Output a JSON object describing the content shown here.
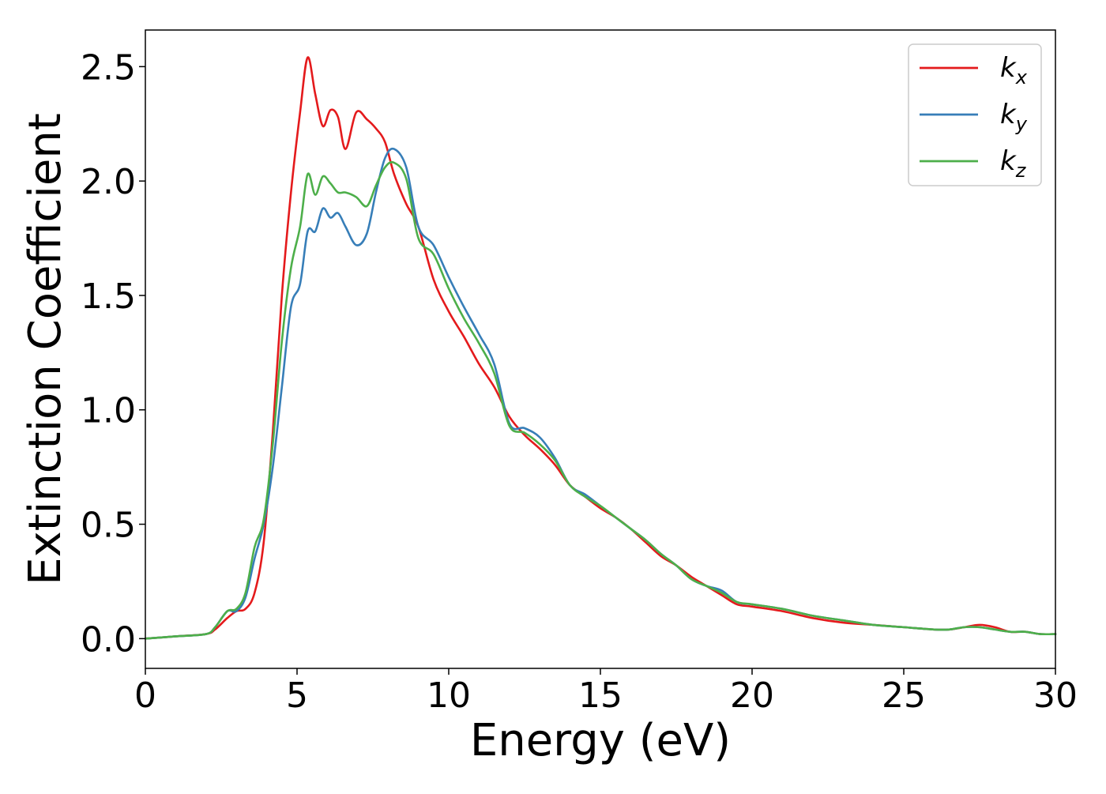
{
  "chart_data": {
    "type": "line",
    "xlabel": "Energy (eV)",
    "ylabel": "Extinction Coefficient",
    "xlim": [
      0,
      30
    ],
    "ylim": [
      -0.13,
      2.66
    ],
    "xticks": [
      0,
      5,
      10,
      15,
      20,
      25,
      30
    ],
    "xtick_labels": [
      "0",
      "5",
      "10",
      "15",
      "20",
      "25",
      "30"
    ],
    "yticks": [
      0.0,
      0.5,
      1.0,
      1.5,
      2.0,
      2.5
    ],
    "ytick_labels": [
      "0.0",
      "0.5",
      "1.0",
      "1.5",
      "2.0",
      "2.5"
    ],
    "grid": false,
    "legend_position": "top-right",
    "series": [
      {
        "name": "k",
        "subscript": "x",
        "color": "#e41a1c",
        "x": [
          0,
          1,
          2,
          2.3,
          2.7,
          3.0,
          3.3,
          3.6,
          3.9,
          4.2,
          4.5,
          4.8,
          5.1,
          5.35,
          5.6,
          5.85,
          6.1,
          6.35,
          6.6,
          6.95,
          7.3,
          7.6,
          7.9,
          8.2,
          8.6,
          9.0,
          9.5,
          10.0,
          10.5,
          11.0,
          11.5,
          12.0,
          12.5,
          13.0,
          13.5,
          14.0,
          14.5,
          15.0,
          15.5,
          16.0,
          16.5,
          17.0,
          17.5,
          18.0,
          18.5,
          19.0,
          19.5,
          20.0,
          21.0,
          22.0,
          23.0,
          24.0,
          25.0,
          26.0,
          26.5,
          27.0,
          27.5,
          28.0,
          28.5,
          29.0,
          29.5,
          30.0
        ],
        "y": [
          0.0,
          0.01,
          0.02,
          0.04,
          0.09,
          0.12,
          0.13,
          0.2,
          0.42,
          0.9,
          1.5,
          1.95,
          2.3,
          2.54,
          2.38,
          2.24,
          2.31,
          2.28,
          2.14,
          2.3,
          2.27,
          2.23,
          2.17,
          2.03,
          1.9,
          1.8,
          1.57,
          1.43,
          1.32,
          1.2,
          1.1,
          0.97,
          0.89,
          0.83,
          0.76,
          0.67,
          0.62,
          0.57,
          0.53,
          0.48,
          0.42,
          0.36,
          0.32,
          0.27,
          0.23,
          0.19,
          0.15,
          0.14,
          0.12,
          0.09,
          0.07,
          0.06,
          0.05,
          0.04,
          0.04,
          0.05,
          0.06,
          0.05,
          0.03,
          0.03,
          0.02,
          0.02
        ]
      },
      {
        "name": "k",
        "subscript": "y",
        "color": "#377eb8",
        "x": [
          0,
          1,
          2,
          2.3,
          2.7,
          3.0,
          3.3,
          3.6,
          3.9,
          4.2,
          4.5,
          4.8,
          5.1,
          5.35,
          5.6,
          5.85,
          6.1,
          6.35,
          6.6,
          6.95,
          7.3,
          7.6,
          7.9,
          8.2,
          8.6,
          9.0,
          9.5,
          10.0,
          10.5,
          11.0,
          11.5,
          12.0,
          12.5,
          13.0,
          13.5,
          14.0,
          14.5,
          15.0,
          15.5,
          16.0,
          16.5,
          17.0,
          17.5,
          18.0,
          18.5,
          19.0,
          19.5,
          20.0,
          21.0,
          22.0,
          23.0,
          24.0,
          25.0,
          26.0,
          26.5,
          27.0,
          27.5,
          28.0,
          28.5,
          29.0,
          29.5,
          30.0
        ],
        "y": [
          0.0,
          0.01,
          0.02,
          0.05,
          0.12,
          0.12,
          0.18,
          0.35,
          0.5,
          0.75,
          1.1,
          1.45,
          1.55,
          1.78,
          1.78,
          1.88,
          1.84,
          1.86,
          1.8,
          1.72,
          1.77,
          1.95,
          2.1,
          2.14,
          2.06,
          1.8,
          1.72,
          1.58,
          1.45,
          1.33,
          1.2,
          0.94,
          0.92,
          0.88,
          0.79,
          0.67,
          0.63,
          0.58,
          0.53,
          0.48,
          0.43,
          0.37,
          0.32,
          0.26,
          0.23,
          0.21,
          0.16,
          0.15,
          0.13,
          0.1,
          0.08,
          0.06,
          0.05,
          0.04,
          0.04,
          0.05,
          0.05,
          0.04,
          0.03,
          0.03,
          0.02,
          0.02
        ]
      },
      {
        "name": "k",
        "subscript": "z",
        "color": "#4daf4a",
        "x": [
          0,
          1,
          2,
          2.3,
          2.7,
          3.0,
          3.3,
          3.6,
          3.9,
          4.2,
          4.5,
          4.8,
          5.1,
          5.35,
          5.6,
          5.85,
          6.1,
          6.35,
          6.6,
          6.95,
          7.3,
          7.6,
          7.9,
          8.2,
          8.6,
          9.0,
          9.5,
          10.0,
          10.5,
          11.0,
          11.5,
          12.0,
          12.5,
          13.0,
          13.5,
          14.0,
          14.5,
          15.0,
          15.5,
          16.0,
          16.5,
          17.0,
          17.5,
          18.0,
          18.5,
          19.0,
          19.5,
          20.0,
          21.0,
          22.0,
          23.0,
          24.0,
          25.0,
          26.0,
          26.5,
          27.0,
          27.5,
          28.0,
          28.5,
          29.0,
          29.5,
          30.0
        ],
        "y": [
          0.0,
          0.01,
          0.02,
          0.05,
          0.12,
          0.13,
          0.2,
          0.4,
          0.52,
          0.85,
          1.3,
          1.62,
          1.8,
          2.03,
          1.94,
          2.02,
          1.99,
          1.95,
          1.95,
          1.93,
          1.89,
          1.98,
          2.06,
          2.08,
          2.01,
          1.75,
          1.68,
          1.53,
          1.4,
          1.29,
          1.16,
          0.93,
          0.9,
          0.85,
          0.78,
          0.67,
          0.62,
          0.58,
          0.53,
          0.48,
          0.43,
          0.37,
          0.32,
          0.26,
          0.23,
          0.2,
          0.16,
          0.15,
          0.13,
          0.1,
          0.08,
          0.06,
          0.05,
          0.04,
          0.04,
          0.05,
          0.05,
          0.04,
          0.03,
          0.03,
          0.02,
          0.02
        ]
      }
    ]
  }
}
